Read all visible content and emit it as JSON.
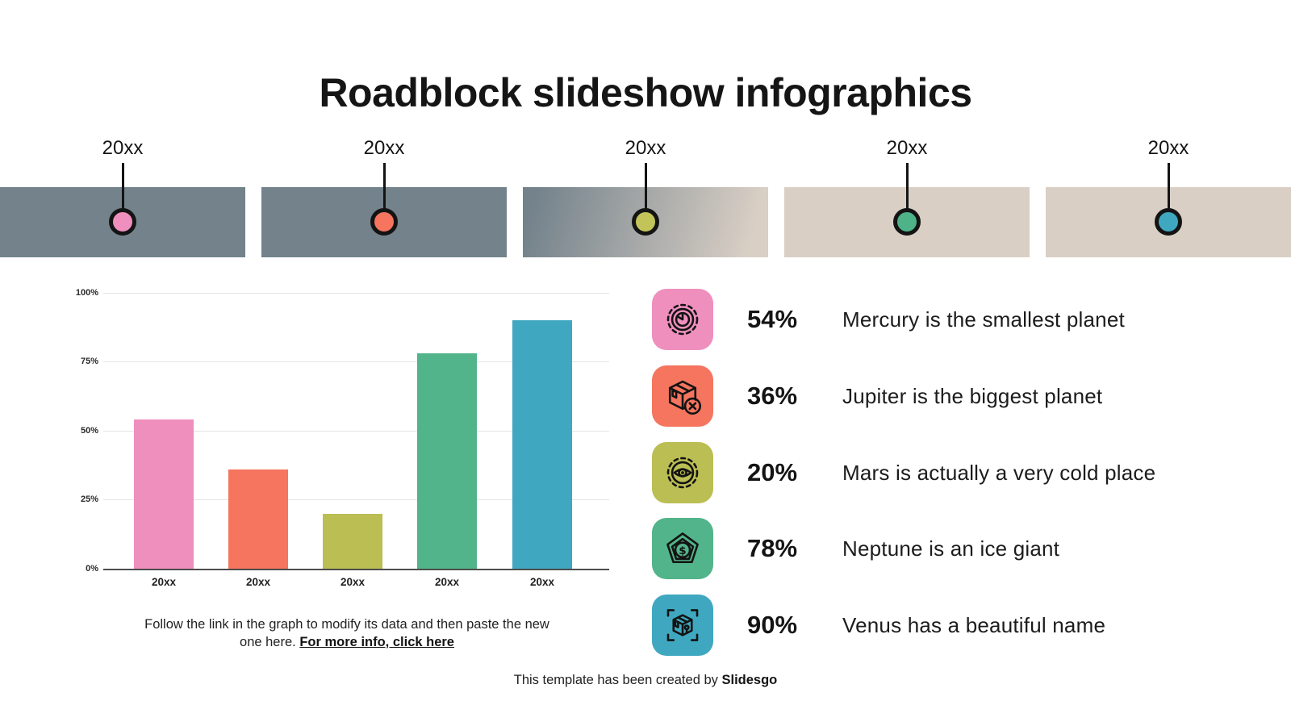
{
  "page": {
    "title": "Roadblock slideshow infographics"
  },
  "timeline": {
    "road_colors": {
      "asphalt": "#73828B",
      "sand": "#D9CFC5"
    },
    "dash_color": "#ffffff",
    "milestones": [
      {
        "year": "20xx",
        "dot_color": "#EF8FBE",
        "segment": "asphalt"
      },
      {
        "year": "20xx",
        "dot_color": "#F5755F",
        "segment": "asphalt"
      },
      {
        "year": "20xx",
        "dot_color": "#C2C45A",
        "segment": "transition"
      },
      {
        "year": "20xx",
        "dot_color": "#4FB389",
        "segment": "sand"
      },
      {
        "year": "20xx",
        "dot_color": "#3FA8C0",
        "segment": "sand"
      }
    ]
  },
  "chart_data": {
    "type": "bar",
    "title": "",
    "xlabel": "",
    "ylabel": "",
    "categories": [
      "20xx",
      "20xx",
      "20xx",
      "20xx",
      "20xx"
    ],
    "values": [
      54,
      36,
      20,
      78,
      90
    ],
    "unit": "%",
    "bar_colors": [
      "#EF8FBE",
      "#F5755F",
      "#BBBE53",
      "#52B48A",
      "#3FA8C0"
    ],
    "y_ticks": [
      "0%",
      "25%",
      "50%",
      "75%",
      "100%"
    ],
    "ylim": [
      0,
      100
    ],
    "grid": true,
    "legend_position": "right-list"
  },
  "legend": {
    "items": [
      {
        "icon": "gear-clock-icon",
        "tile_color": "#EF8FBE",
        "percent": "54%",
        "label": "Mercury is the smallest planet"
      },
      {
        "icon": "package-cancel-icon",
        "tile_color": "#F5755F",
        "percent": "36%",
        "label": "Jupiter is the biggest planet"
      },
      {
        "icon": "gear-eye-icon",
        "tile_color": "#BBBE53",
        "percent": "20%",
        "label": "Mars is actually a very cold place"
      },
      {
        "icon": "pentagon-dollar-icon",
        "tile_color": "#52B48A",
        "percent": "78%",
        "label": "Neptune is an ice giant"
      },
      {
        "icon": "box-scan-icon",
        "tile_color": "#3FA8C0",
        "percent": "90%",
        "label": "Venus has a beautiful name"
      }
    ]
  },
  "footer": {
    "note": "Follow the link in the graph to modify its data and then paste the new one here.",
    "link_label": "For more info, click here",
    "credit_prefix": "This template has been created by",
    "credit_brand": "Slidesgo"
  }
}
